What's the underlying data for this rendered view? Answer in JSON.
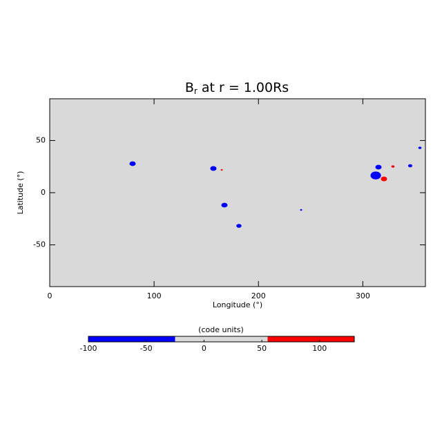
{
  "chart_data": {
    "type": "scatter",
    "title": "B",
    "title_subscript": "r",
    "title_rest": " at r = 1.00Rs",
    "x_label": "Longitude (°)",
    "y_label": "Latitude (°)",
    "xlim": [
      0,
      360
    ],
    "ylim": [
      -90,
      90
    ],
    "xticks": [
      0,
      100,
      200,
      300
    ],
    "yticks": [
      -50,
      0,
      50
    ],
    "background": "#d9d9d9",
    "x": [
      79.4,
      156.8,
      164.8,
      167.4,
      181.3,
      240.9,
      312.4,
      315,
      320.3,
      328.9,
      345.4,
      354.7
    ],
    "y": [
      27.8,
      23.2,
      21.8,
      -11.9,
      -31.8,
      -16.5,
      16.5,
      24.5,
      13.2,
      25.1,
      25.8,
      43
    ],
    "values": [
      -100,
      -100,
      100,
      -100,
      -100,
      -100,
      -100,
      -100,
      100,
      100,
      -100,
      -100
    ],
    "sizes": [
      3,
      3,
      1,
      3,
      2.5,
      1,
      5,
      3,
      3,
      1.5,
      2,
      1.5
    ],
    "colorbar": {
      "label": "(code units)",
      "lim": [
        -100,
        130
      ],
      "ticks": [
        -100,
        -50,
        0,
        50,
        100
      ],
      "bins": [
        -100,
        -25,
        55,
        130
      ],
      "colors": [
        "#0000ff",
        "#d9d9d9",
        "#ff0000"
      ]
    }
  }
}
